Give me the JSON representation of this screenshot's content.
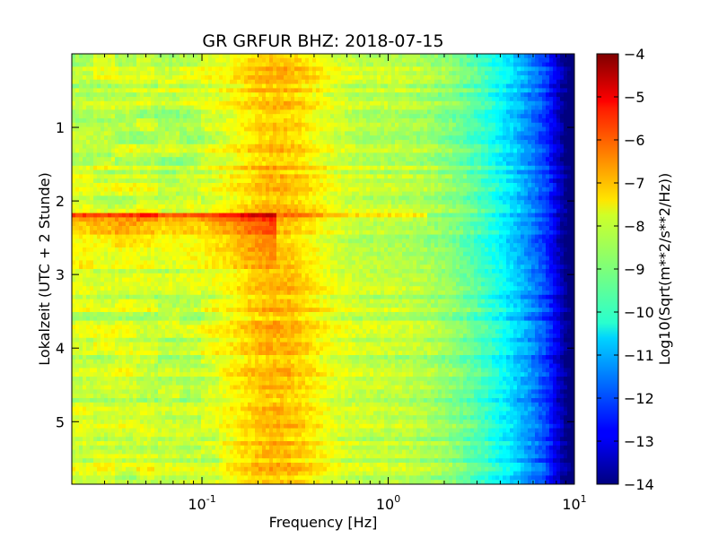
{
  "chart_data": {
    "type": "heatmap",
    "title": "GR GRFUR BHZ: 2018-07-15",
    "xlabel": "Frequency [Hz]",
    "ylabel": "Lokalzeit (UTC + 2 Stunde)",
    "xscale": "log",
    "xlim": [
      0.02,
      10
    ],
    "ylim": [
      5.85,
      0
    ],
    "y_inverted": true,
    "x_ticks": [
      {
        "base": "10",
        "exp": "-1",
        "value": 0.1
      },
      {
        "base": "10",
        "exp": "0",
        "value": 1
      },
      {
        "base": "10",
        "exp": "1",
        "value": 10
      }
    ],
    "y_ticks": [
      "1",
      "2",
      "3",
      "4",
      "5"
    ],
    "colorbar": {
      "label": "Log10(Sqrt(m**2/s**2/Hz))",
      "min": -14,
      "max": -4,
      "colormap": "jet",
      "ticks": [
        "-4",
        "-5",
        "-6",
        "-7",
        "-8",
        "-9",
        "-10",
        "-11",
        "-12",
        "-13",
        "-14"
      ]
    },
    "features": {
      "microseism_peak_hz": 0.25,
      "microseism_peak_value": -7.0,
      "low_freq_value": -8.3,
      "high_freq_value": -13.8,
      "event_time_start": 2.15,
      "event_time_end": 2.95,
      "event_peak_value": -6.2
    }
  }
}
